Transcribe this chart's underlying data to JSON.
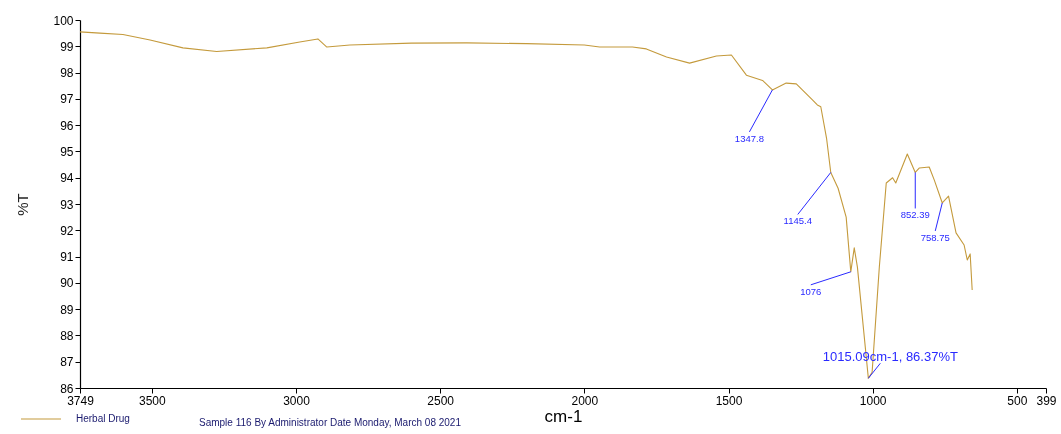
{
  "chart_data": {
    "type": "line",
    "xlabel": "cm-1",
    "ylabel": "%T",
    "xlim": [
      3749,
      399
    ],
    "ylim": [
      86,
      100
    ],
    "xticks": [
      3749,
      3500,
      3000,
      2500,
      2000,
      1500,
      1000,
      500,
      399
    ],
    "yticks": [
      86,
      87,
      88,
      89,
      90,
      91,
      92,
      93,
      94,
      95,
      96,
      97,
      98,
      99,
      100
    ],
    "legend": "bottom left",
    "grid": false,
    "series": [
      {
        "name": "Herbal Drug",
        "color": "#c49a3c",
        "x": [
          3749,
          3680,
          3600,
          3506,
          3392,
          3275,
          3101,
          2987,
          2924,
          2893,
          2813,
          2600,
          2408,
          2200,
          2000,
          1947,
          1833,
          1785,
          1715,
          1635,
          1542,
          1490,
          1438,
          1382,
          1347.8,
          1300,
          1265,
          1209,
          1192,
          1180,
          1160,
          1145.4,
          1120,
          1092,
          1076,
          1064,
          1053,
          1015.09,
          1002,
          977,
          953,
          931,
          920,
          880,
          852.39,
          838,
          804,
          786,
          758.75,
          737,
          711,
          683,
          672,
          662,
          655
        ],
        "values": [
          99.55,
          99.5,
          99.45,
          99.24,
          98.94,
          98.8,
          98.94,
          99.16,
          99.28,
          98.97,
          99.05,
          99.12,
          99.13,
          99.1,
          99.05,
          98.97,
          98.97,
          98.9,
          98.59,
          98.36,
          98.63,
          98.67,
          97.9,
          97.7,
          97.34,
          97.6,
          97.57,
          96.96,
          96.77,
          96.7,
          95.5,
          94.2,
          93.6,
          92.5,
          90.42,
          91.33,
          90.6,
          86.37,
          86.6,
          90.6,
          93.8,
          94.0,
          93.8,
          94.9,
          94.2,
          94.37,
          94.41,
          93.9,
          93.04,
          93.3,
          91.9,
          91.44,
          90.87,
          91.1,
          89.73
        ]
      }
    ],
    "annotations": [
      {
        "text": "1347.8",
        "x": 1347.8,
        "y": 97.34
      },
      {
        "text": "1145.4",
        "x": 1145.4,
        "y": 94.2
      },
      {
        "text": "1076",
        "x": 1076,
        "y": 90.42
      },
      {
        "text": "852.39",
        "x": 852.39,
        "y": 94.2
      },
      {
        "text": "758.75",
        "x": 758.75,
        "y": 93.04
      },
      {
        "text": "1015.09cm-1, 86.37%T",
        "x": 1015.09,
        "y": 86.37
      },
      "Sample 116 By Administrator Date Monday, March 08 2021"
    ]
  }
}
